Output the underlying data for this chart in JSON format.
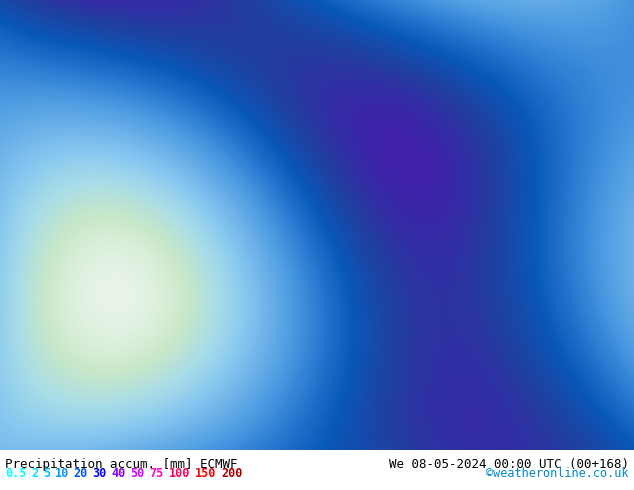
{
  "title_left": "Precipitation accum. [mm] ECMWF",
  "title_right": "We 08-05-2024 00:00 UTC (00+168)",
  "copyright": "©weatheronline.co.uk",
  "legend_values": [
    "0.5",
    "2",
    "5",
    "10",
    "20",
    "30",
    "40",
    "50",
    "75",
    "100",
    "150",
    "200"
  ],
  "legend_colors": [
    "#00ffff",
    "#00e0ff",
    "#00bfff",
    "#0099ff",
    "#0055ff",
    "#0000ff",
    "#8800ff",
    "#cc00ff",
    "#ff00cc",
    "#ff0055",
    "#ff0000",
    "#aa0000"
  ],
  "bg_color": "#a8d8f0",
  "text_color_left": "#00cccc",
  "text_color_right": "#00cccc",
  "title_text_color": "#000000",
  "figsize": [
    6.34,
    4.9
  ],
  "dpi": 100
}
